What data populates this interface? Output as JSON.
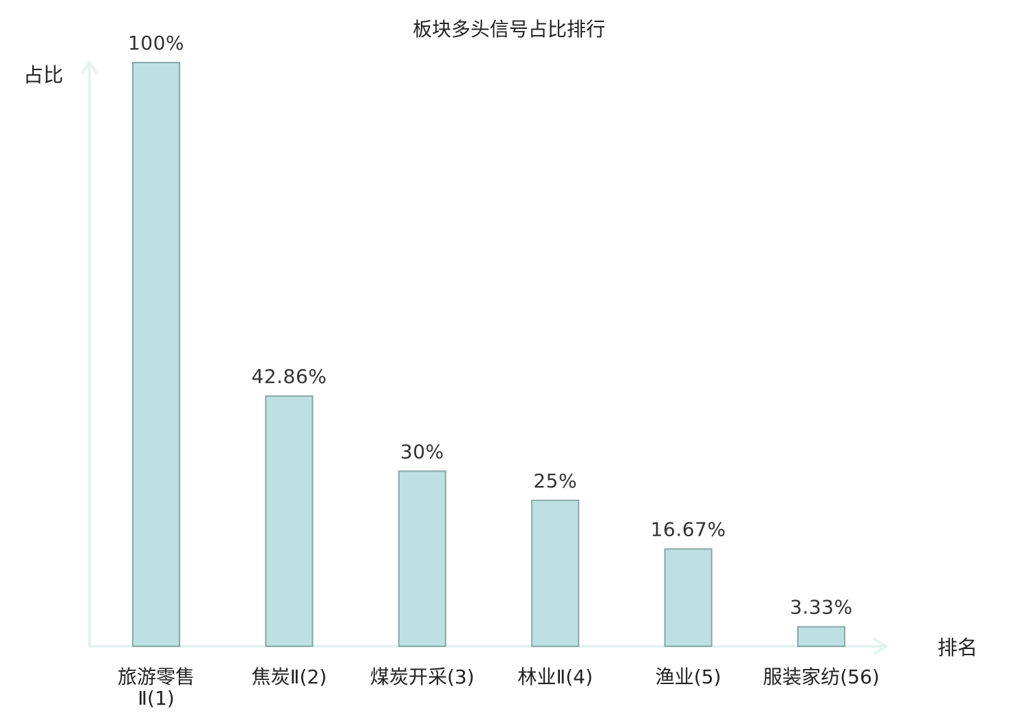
{
  "chart_data": {
    "type": "bar",
    "title": "板块多头信号占比排行",
    "xlabel": "排名",
    "ylabel": "占比",
    "ylim": [
      0,
      100
    ],
    "grid": false,
    "categories": [
      [
        "旅游零售",
        "Ⅱ(1)"
      ],
      [
        "焦炭Ⅱ(2)"
      ],
      [
        "煤炭开采(3)"
      ],
      [
        "林业Ⅱ(4)"
      ],
      [
        "渔业(5)"
      ],
      [
        "服装家纺(56)"
      ]
    ],
    "values": [
      100,
      42.86,
      30,
      25,
      16.67,
      3.33
    ],
    "value_labels": [
      "100%",
      "42.86%",
      "30%",
      "25%",
      "16.67%",
      "3.33%"
    ],
    "highlight_index": 5,
    "colors": {
      "bar_fill": "#bde0e2",
      "bar_stroke": "#8aa6a8",
      "axis": "#e3f3f1",
      "label": "#222222",
      "highlight": "#e00000"
    }
  }
}
